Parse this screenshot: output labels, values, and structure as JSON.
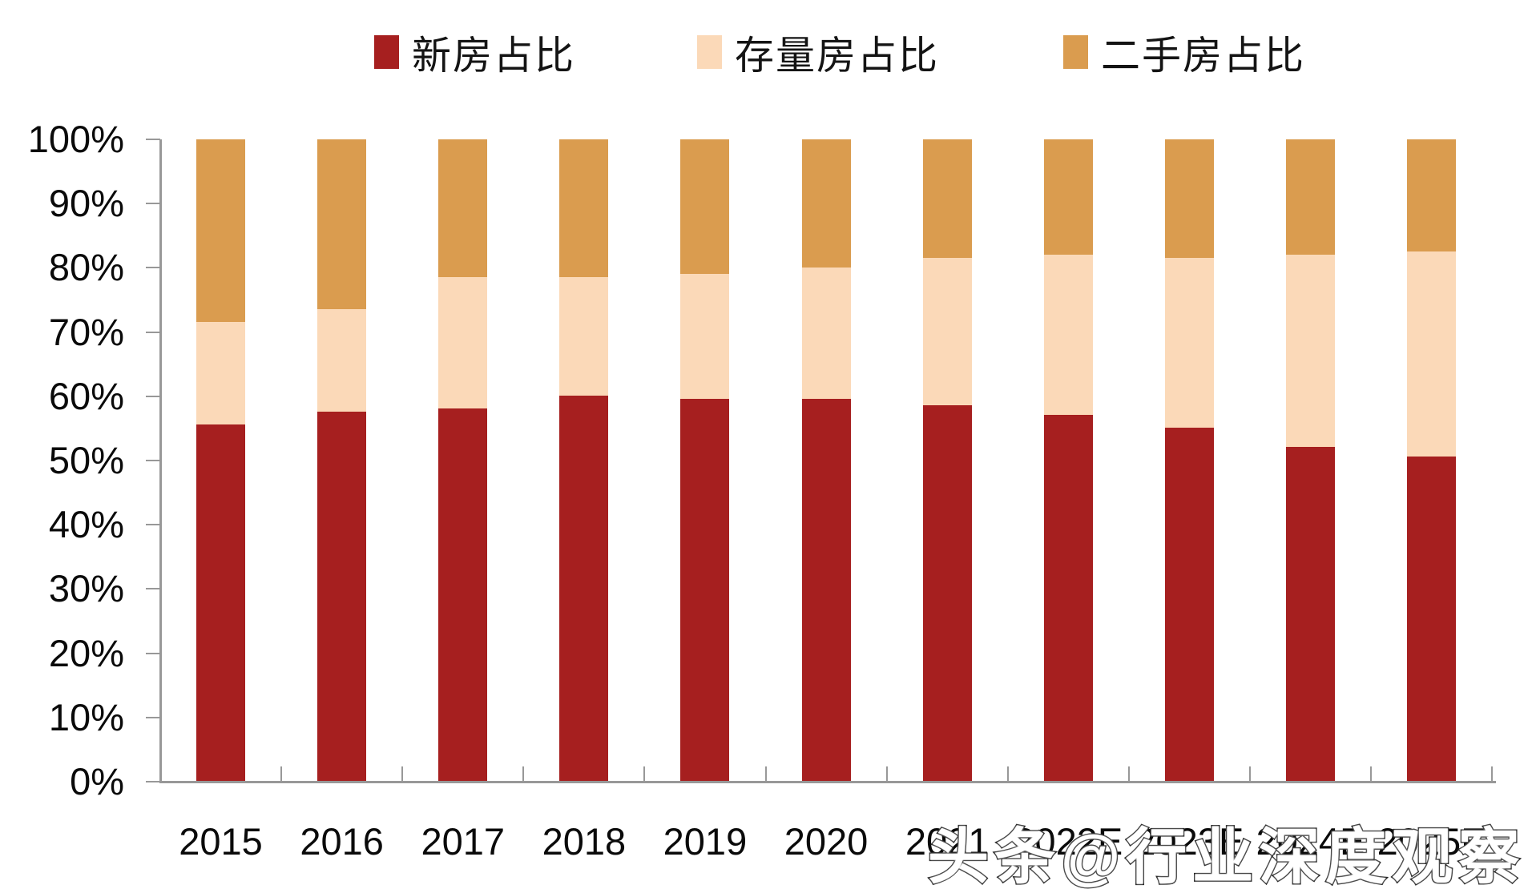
{
  "watermark": "头条@行业深度观察",
  "chart_data": {
    "type": "bar",
    "stacked": true,
    "title": "",
    "xlabel": "",
    "ylabel": "",
    "categories": [
      "2015",
      "2016",
      "2017",
      "2018",
      "2019",
      "2020",
      "2021",
      "2022E",
      "2023E",
      "2024E",
      "2025E"
    ],
    "series": [
      {
        "name": "新房占比",
        "color": "#A61F1F",
        "values": [
          55.5,
          57.5,
          58.0,
          60.0,
          59.5,
          59.5,
          58.5,
          57.0,
          55.0,
          52.0,
          50.5
        ]
      },
      {
        "name": "存量房占比",
        "color": "#FBD9B8",
        "values": [
          16.0,
          16.0,
          20.5,
          18.5,
          19.5,
          20.5,
          23.0,
          25.0,
          26.5,
          30.0,
          32.0
        ]
      },
      {
        "name": "二手房占比",
        "color": "#DA9C4F",
        "values": [
          28.5,
          26.5,
          21.5,
          21.5,
          21.0,
          20.0,
          18.5,
          18.0,
          18.5,
          18.0,
          17.5
        ]
      }
    ],
    "y_ticks": [
      "0%",
      "10%",
      "20%",
      "30%",
      "40%",
      "50%",
      "60%",
      "70%",
      "80%",
      "90%",
      "100%"
    ],
    "ylim": [
      0,
      100
    ],
    "unit": "%",
    "grid": false,
    "legend_position": "top",
    "axis_color": "#989898"
  }
}
